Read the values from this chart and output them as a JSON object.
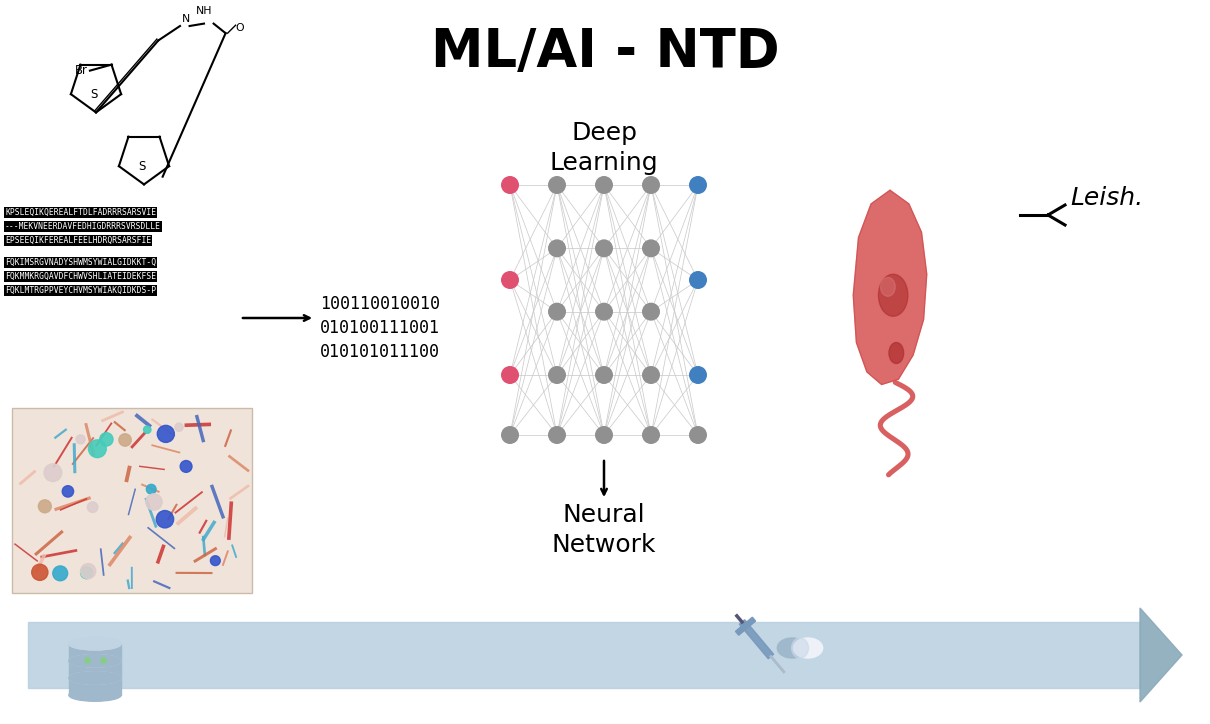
{
  "title": "ML/AI - NTD",
  "title_fontsize": 38,
  "title_fontweight": "bold",
  "bg_color": "#ffffff",
  "deep_learning_text": "Deep\nLearning",
  "neural_network_text": "Neural\nNetwork",
  "binary_lines": [
    "100110010010",
    "010100111001",
    "010101011100"
  ],
  "leish_text": "Leish.",
  "seq_block1": [
    "KPSLEQIKQEREALFTDLFADRRRSARSVIE",
    "---MEKVNEERDAVFEDHIGDRRRSVRSDLLE",
    "EPSEEQIKFEREALFEELHDRQRSARSFIE"
  ],
  "seq_block2": [
    "FQKIMSRGVNADYSHWMSYWIALGIDKKT-Q",
    "FQKMMKRGQAVDFCHWVSHLIATEIDEKFSE",
    "FQKLMTRGPPVEYCHVMSYWIAKQIDKDS-P"
  ],
  "node_color_input": "#e05070",
  "node_color_hidden": "#909090",
  "node_color_output": "#4080c0",
  "connection_color": "#cccccc",
  "arrow_color": "#b8cfe0",
  "arrow_color_dark": "#8aaabb",
  "leishmania_body_color": "#d96060",
  "leishmania_flagellum_color": "#d96060",
  "database_color": "#a0b8cc",
  "syringe_color": "#7799bb",
  "capsule_color1": "#a0b8cc",
  "capsule_color2": "#ffffff"
}
